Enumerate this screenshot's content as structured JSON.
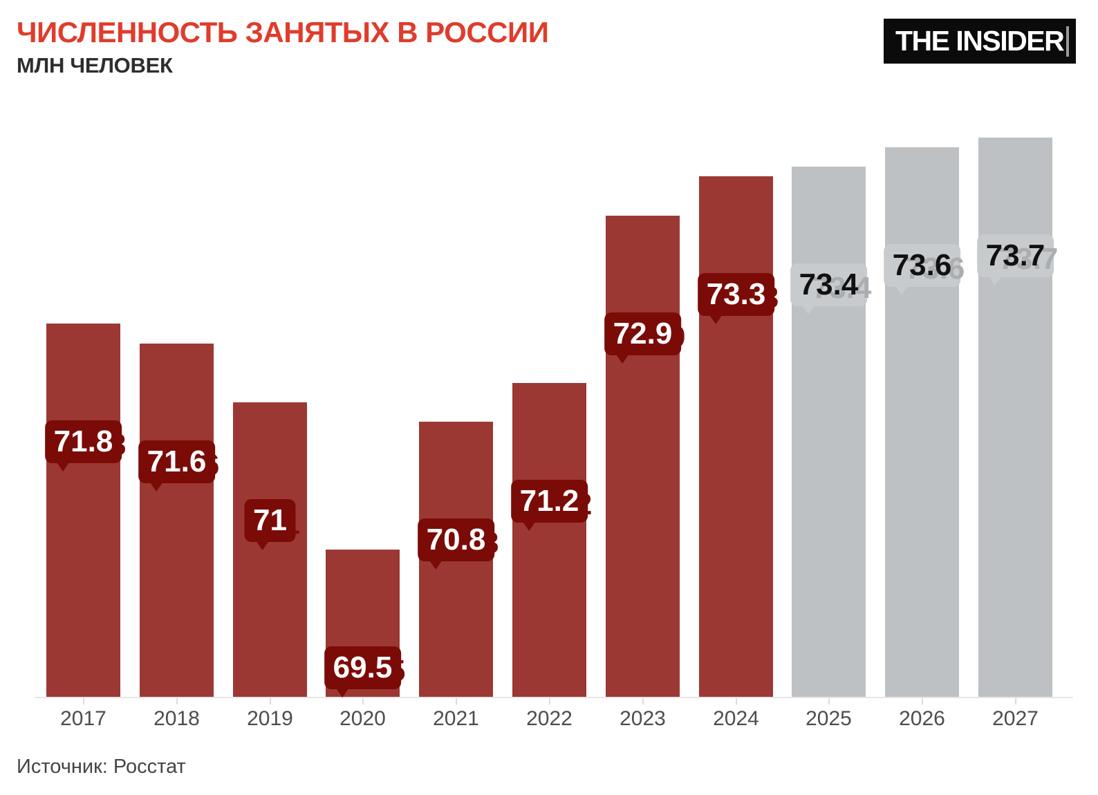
{
  "header": {
    "title": "ЧИСЛЕННОСТЬ ЗАНЯТЫХ В РОССИИ",
    "subtitle": "МЛН ЧЕЛОВЕК",
    "logo_text": "THE INSIDER"
  },
  "footer": {
    "source": "Источник: Росстат"
  },
  "colors": {
    "title_red": "#e03c2c",
    "bar_actual": "#9c3833",
    "bar_forecast": "#bec1c4",
    "label_bubble_actual": "#7b0b07",
    "label_bubble_forecast": "#c8cbce",
    "label_text_actual": "#ffffff",
    "label_text_forecast": "#111111",
    "echo_forecast": "#abaeb1",
    "logo_bg": "#0b0b0b"
  },
  "chart_data": {
    "type": "bar",
    "title": "ЧИСЛЕННОСТЬ ЗАНЯТЫХ В РОССИИ",
    "subtitle_units": "МЛН ЧЕЛОВЕК",
    "categories": [
      "2017",
      "2018",
      "2019",
      "2020",
      "2021",
      "2022",
      "2023",
      "2024",
      "2025",
      "2026",
      "2027"
    ],
    "values": [
      71.8,
      71.6,
      71,
      69.5,
      70.8,
      71.2,
      72.9,
      73.3,
      73.4,
      73.6,
      73.7
    ],
    "labels": [
      "71.8",
      "71.6",
      "71",
      "69.5",
      "70.8",
      "71.2",
      "72.9",
      "73.3",
      "73.4",
      "73.6",
      "73.7"
    ],
    "forecast_mask": [
      false,
      false,
      false,
      false,
      false,
      false,
      false,
      false,
      true,
      true,
      true
    ],
    "forecast_from_category": "2025",
    "xlabel": "",
    "ylabel": "млн человек",
    "ylim": [
      68,
      74
    ],
    "y_axis_shown": false,
    "grid": false,
    "legend": false,
    "source": "Росстат"
  }
}
